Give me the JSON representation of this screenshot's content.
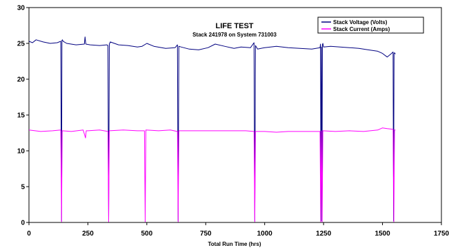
{
  "chart_data": {
    "type": "line",
    "title": "LIFE TEST",
    "subtitle": "Stack 241978 on System 731003",
    "xlabel": "Total Run Time (hrs)",
    "ylabel": "",
    "xlim": [
      0,
      1750
    ],
    "ylim": [
      0,
      30
    ],
    "xticks": [
      0,
      250,
      500,
      750,
      1000,
      1250,
      1500,
      1750
    ],
    "yticks": [
      0,
      5,
      10,
      15,
      20,
      25,
      30
    ],
    "grid": false,
    "legend_position": "top-right",
    "colors": {
      "voltage": "#000080",
      "current": "#ff00ff"
    },
    "series": [
      {
        "name": "Stack Voltage (Volts)",
        "color": "#000080",
        "x": [
          0,
          15,
          30,
          60,
          90,
          120,
          135,
          138,
          140,
          142,
          145,
          160,
          200,
          235,
          238,
          241,
          260,
          300,
          330,
          335,
          338,
          341,
          345,
          380,
          420,
          460,
          480,
          500,
          530,
          580,
          620,
          630,
          633,
          636,
          645,
          680,
          720,
          760,
          790,
          830,
          870,
          900,
          940,
          955,
          958,
          961,
          970,
          1000,
          1050,
          1100,
          1150,
          1200,
          1235,
          1237,
          1239,
          1241,
          1243,
          1245,
          1247,
          1250,
          1280,
          1320,
          1360,
          1400,
          1440,
          1480,
          1500,
          1520,
          1535,
          1545,
          1547,
          1549,
          1551,
          1555
        ],
        "y": [
          25.3,
          25.1,
          25.5,
          25.2,
          25.0,
          25.1,
          25.3,
          0.2,
          25.4,
          25.5,
          25.3,
          25.0,
          24.8,
          24.9,
          25.9,
          24.9,
          24.8,
          24.7,
          24.8,
          24.7,
          0.2,
          24.9,
          25.2,
          24.8,
          24.7,
          24.5,
          24.6,
          25.0,
          24.6,
          24.3,
          24.4,
          24.8,
          0.2,
          24.6,
          24.5,
          24.2,
          24.1,
          24.4,
          24.9,
          24.6,
          24.3,
          24.5,
          24.4,
          25.1,
          0.2,
          24.7,
          24.2,
          24.4,
          24.6,
          24.4,
          24.3,
          24.2,
          24.4,
          24.9,
          0.2,
          24.5,
          0.2,
          24.8,
          25.0,
          24.5,
          24.6,
          24.5,
          24.4,
          24.3,
          24.1,
          23.9,
          23.6,
          23.1,
          23.5,
          23.8,
          0.2,
          23.6,
          23.7,
          23.5
        ]
      },
      {
        "name": "Stack Current (Amps)",
        "color": "#ff00ff",
        "x": [
          0,
          50,
          100,
          135,
          138,
          141,
          180,
          230,
          240,
          243,
          250,
          300,
          335,
          338,
          341,
          400,
          460,
          490,
          493,
          496,
          550,
          600,
          630,
          633,
          636,
          700,
          780,
          860,
          920,
          955,
          958,
          961,
          1000,
          1050,
          1100,
          1150,
          1200,
          1235,
          1238,
          1241,
          1244,
          1247,
          1300,
          1360,
          1420,
          1480,
          1500,
          1520,
          1545,
          1548,
          1551,
          1555
        ],
        "y": [
          12.9,
          12.7,
          12.8,
          12.9,
          0.1,
          12.8,
          12.7,
          12.9,
          11.8,
          12.8,
          12.8,
          12.9,
          12.7,
          0.1,
          12.8,
          12.9,
          12.8,
          12.8,
          0.1,
          12.9,
          12.8,
          12.9,
          12.7,
          0.1,
          12.8,
          12.8,
          12.8,
          12.8,
          12.8,
          12.7,
          0.1,
          12.7,
          12.7,
          12.6,
          12.7,
          12.7,
          12.7,
          12.7,
          0.1,
          12.8,
          0.1,
          12.8,
          12.7,
          12.8,
          12.7,
          12.9,
          13.2,
          13.1,
          13.0,
          0.1,
          12.9,
          12.9
        ]
      }
    ]
  }
}
